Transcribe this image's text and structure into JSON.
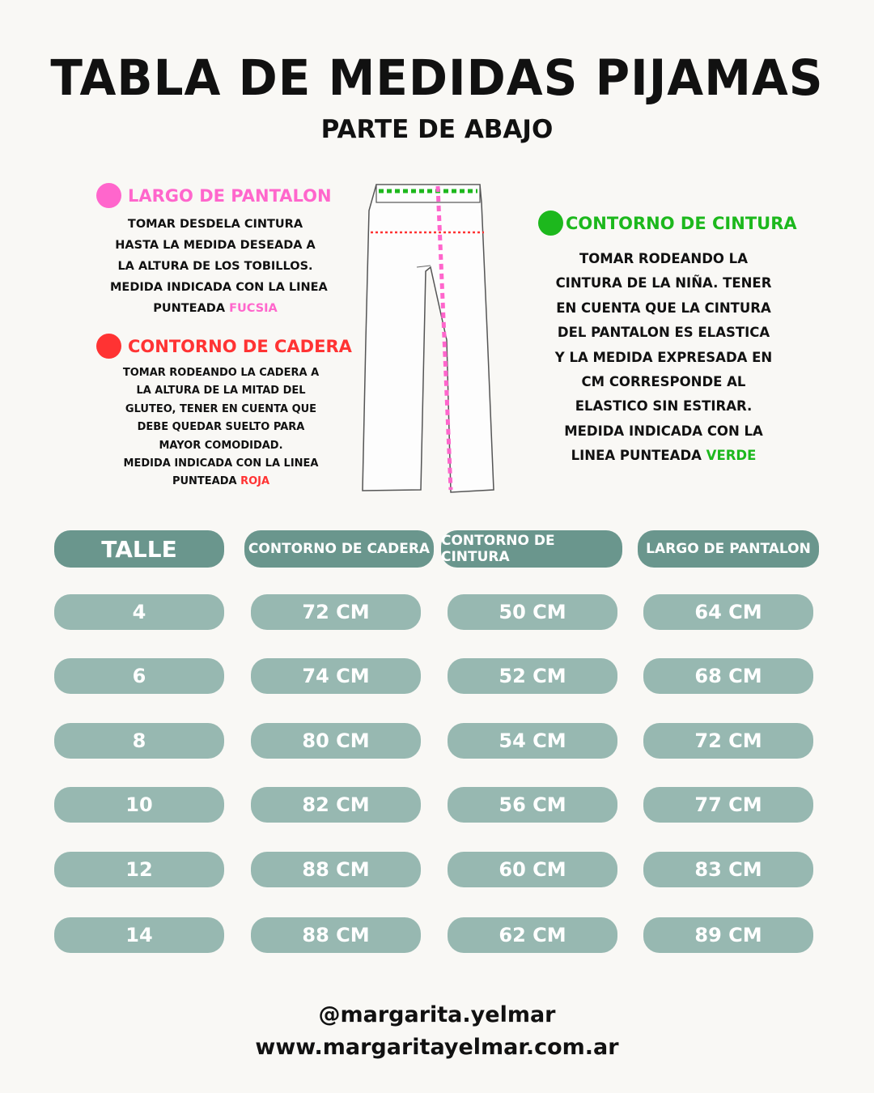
{
  "title": "TABLA DE MEDIDAS PIJAMAS",
  "subtitle": "PARTE DE ABAJO",
  "colors": {
    "pink": "#ff66cc",
    "red": "#ff3333",
    "green": "#1db81d",
    "header_pill": "#6a968d",
    "cell_pill": "#97b8b1"
  },
  "sections": {
    "largo": {
      "heading": "LARGO DE PANTALON",
      "lines": [
        "TOMAR DESDELA CINTURA",
        "HASTA LA MEDIDA DESEADA A",
        "LA ALTURA DE LOS TOBILLOS.",
        "MEDIDA INDICADA CON LA LINEA"
      ],
      "last_prefix": "PUNTEADA ",
      "last_color_word": "FUCSIA"
    },
    "cadera": {
      "heading": "CONTORNO DE CADERA",
      "lines": [
        "TOMAR RODEANDO LA CADERA A",
        "LA ALTURA DE LA MITAD DEL",
        "GLUTEO, TENER EN CUENTA QUE",
        "DEBE QUEDAR SUELTO PARA",
        "MAYOR COMODIDAD.",
        "MEDIDA INDICADA CON LA LINEA"
      ],
      "last_prefix": "PUNTEADA ",
      "last_color_word": "ROJA"
    },
    "cintura": {
      "heading": "CONTORNO DE CINTURA",
      "lines": [
        "TOMAR RODEANDO LA",
        "CINTURA DE LA NIÑA. TENER",
        "EN CUENTA QUE LA CINTURA",
        "DEL PANTALON ES ELASTICA",
        "Y LA MEDIDA EXPRESADA EN",
        "CM CORRESPONDE AL",
        "ELASTICO SIN ESTIRAR.",
        "MEDIDA INDICADA CON LA"
      ],
      "last_prefix": "LINEA PUNTEADA ",
      "last_color_word": "VERDE"
    }
  },
  "table": {
    "headers": [
      "TALLE",
      "CONTORNO DE CADERA",
      "CONTORNO DE CINTURA",
      "LARGO DE PANTALON"
    ],
    "rows": [
      [
        "4",
        "72 CM",
        "50 CM",
        "64 CM"
      ],
      [
        "6",
        "74 CM",
        "52 CM",
        "68 CM"
      ],
      [
        "8",
        "80 CM",
        "54 CM",
        "72 CM"
      ],
      [
        "10",
        "82 CM",
        "56 CM",
        "77 CM"
      ],
      [
        "12",
        "88 CM",
        "60 CM",
        "83 CM"
      ],
      [
        "14",
        "88 CM",
        "62 CM",
        "89 CM"
      ]
    ]
  },
  "footer": {
    "handle": "@margarita.yelmar",
    "website": "www.margaritayelmar.com.ar"
  }
}
